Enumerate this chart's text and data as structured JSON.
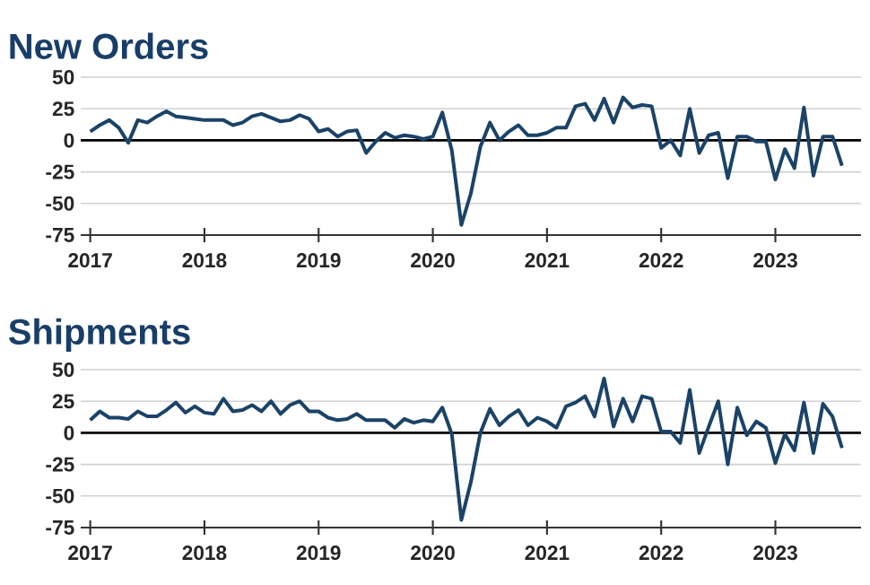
{
  "chart_data": [
    {
      "type": "line",
      "title": "New Orders",
      "x": [
        "2017-01",
        "2017-02",
        "2017-03",
        "2017-04",
        "2017-05",
        "2017-06",
        "2017-07",
        "2017-08",
        "2017-09",
        "2017-10",
        "2017-11",
        "2017-12",
        "2018-01",
        "2018-02",
        "2018-03",
        "2018-04",
        "2018-05",
        "2018-06",
        "2018-07",
        "2018-08",
        "2018-09",
        "2018-10",
        "2018-11",
        "2018-12",
        "2019-01",
        "2019-02",
        "2019-03",
        "2019-04",
        "2019-05",
        "2019-06",
        "2019-07",
        "2019-08",
        "2019-09",
        "2019-10",
        "2019-11",
        "2019-12",
        "2020-01",
        "2020-02",
        "2020-03",
        "2020-04",
        "2020-05",
        "2020-06",
        "2020-07",
        "2020-08",
        "2020-09",
        "2020-10",
        "2020-11",
        "2020-12",
        "2021-01",
        "2021-02",
        "2021-03",
        "2021-04",
        "2021-05",
        "2021-06",
        "2021-07",
        "2021-08",
        "2021-09",
        "2021-10",
        "2021-11",
        "2021-12",
        "2022-01",
        "2022-02",
        "2022-03",
        "2022-04",
        "2022-05",
        "2022-06",
        "2022-07",
        "2022-08",
        "2022-09",
        "2022-10",
        "2022-11",
        "2022-12",
        "2023-01",
        "2023-02",
        "2023-03",
        "2023-04",
        "2023-05",
        "2023-06",
        "2023-07",
        "2023-08"
      ],
      "series": [
        {
          "color": "#1b4368",
          "values": [
            7,
            12,
            16,
            10,
            -2,
            16,
            14,
            19,
            23,
            19,
            18,
            17,
            16,
            16,
            16,
            12,
            14,
            19,
            21,
            18,
            15,
            16,
            20,
            17,
            7,
            9,
            3,
            7,
            8,
            -10,
            -1,
            6,
            2,
            4,
            3,
            1,
            3,
            22,
            -8,
            -67,
            -42,
            -5,
            14,
            0,
            7,
            12,
            4,
            4,
            6,
            10,
            10,
            27,
            29,
            16,
            33,
            14,
            34,
            26,
            28,
            27,
            -6,
            0,
            -12,
            25,
            -10,
            4,
            6,
            -30,
            3,
            3,
            -1,
            -1,
            -31,
            -7,
            -22,
            26,
            -28,
            3,
            3,
            -20
          ]
        }
      ],
      "xlim": [
        "2016-12",
        "2023-10"
      ],
      "ylim": [
        -75,
        50
      ],
      "xticks": [
        "2017",
        "2018",
        "2019",
        "2020",
        "2021",
        "2022",
        "2023"
      ],
      "yticks": [
        -75,
        -50,
        -25,
        0,
        25,
        50
      ],
      "grid": "y",
      "ref_lines": [
        {
          "axis": "y",
          "value": 0,
          "color": "#000000"
        }
      ]
    },
    {
      "type": "line",
      "title": "Shipments",
      "x": [
        "2017-01",
        "2017-02",
        "2017-03",
        "2017-04",
        "2017-05",
        "2017-06",
        "2017-07",
        "2017-08",
        "2017-09",
        "2017-10",
        "2017-11",
        "2017-12",
        "2018-01",
        "2018-02",
        "2018-03",
        "2018-04",
        "2018-05",
        "2018-06",
        "2018-07",
        "2018-08",
        "2018-09",
        "2018-10",
        "2018-11",
        "2018-12",
        "2019-01",
        "2019-02",
        "2019-03",
        "2019-04",
        "2019-05",
        "2019-06",
        "2019-07",
        "2019-08",
        "2019-09",
        "2019-10",
        "2019-11",
        "2019-12",
        "2020-01",
        "2020-02",
        "2020-03",
        "2020-04",
        "2020-05",
        "2020-06",
        "2020-07",
        "2020-08",
        "2020-09",
        "2020-10",
        "2020-11",
        "2020-12",
        "2021-01",
        "2021-02",
        "2021-03",
        "2021-04",
        "2021-05",
        "2021-06",
        "2021-07",
        "2021-08",
        "2021-09",
        "2021-10",
        "2021-11",
        "2021-12",
        "2022-01",
        "2022-02",
        "2022-03",
        "2022-04",
        "2022-05",
        "2022-06",
        "2022-07",
        "2022-08",
        "2022-09",
        "2022-10",
        "2022-11",
        "2022-12",
        "2023-01",
        "2023-02",
        "2023-03",
        "2023-04",
        "2023-05",
        "2023-06",
        "2023-07",
        "2023-08"
      ],
      "series": [
        {
          "color": "#1b4368",
          "values": [
            10,
            17,
            12,
            12,
            11,
            17,
            13,
            13,
            18,
            24,
            16,
            21,
            16,
            15,
            27,
            17,
            18,
            22,
            17,
            25,
            15,
            22,
            25,
            17,
            17,
            12,
            10,
            11,
            15,
            10,
            10,
            10,
            4,
            11,
            8,
            10,
            9,
            20,
            -1,
            -69,
            -39,
            0,
            19,
            6,
            13,
            18,
            6,
            12,
            9,
            4,
            21,
            24,
            29,
            13,
            43,
            5,
            27,
            9,
            29,
            27,
            1,
            1,
            -8,
            34,
            -16,
            5,
            25,
            -25,
            20,
            -2,
            9,
            4,
            -24,
            -1,
            -14,
            24,
            -16,
            23,
            13,
            -12
          ]
        }
      ],
      "xlim": [
        "2016-12",
        "2023-10"
      ],
      "ylim": [
        -75,
        50
      ],
      "xticks": [
        "2017",
        "2018",
        "2019",
        "2020",
        "2021",
        "2022",
        "2023"
      ],
      "yticks": [
        -75,
        -50,
        -25,
        0,
        25,
        50
      ],
      "grid": "y",
      "ref_lines": [
        {
          "axis": "y",
          "value": 0,
          "color": "#000000"
        }
      ]
    }
  ]
}
